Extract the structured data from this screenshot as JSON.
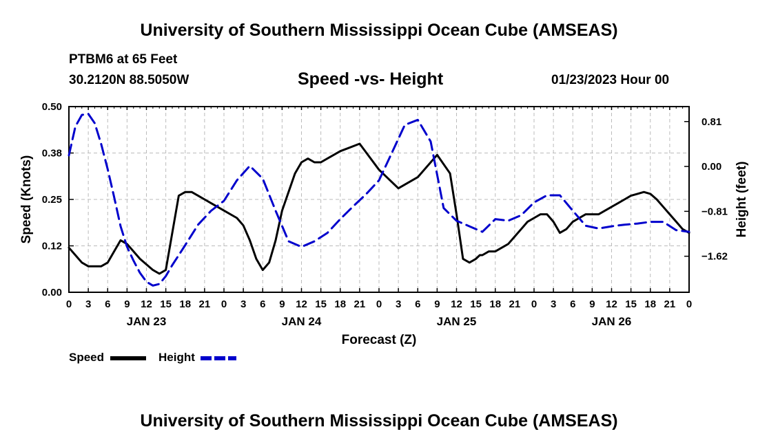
{
  "header": {
    "title": "University of Southern Mississippi Ocean Cube (AMSEAS)",
    "station": "PTBM6 at 65 Feet",
    "coordinates": "30.2120N  88.5050W",
    "chart_title": "Speed -vs- Height",
    "run_time": "01/23/2023 Hour 00"
  },
  "footer": {
    "title": "University of Southern Mississippi Ocean Cube (AMSEAS)"
  },
  "colors": {
    "speed": "#000000",
    "height": "#0000cc",
    "grid": "#bbbbbb"
  },
  "chart_data": {
    "type": "line",
    "title": "Speed -vs- Height",
    "xlabel": "Forecast (Z)",
    "ylabel": "Speed (Knots)",
    "y2label": "Height (feet)",
    "x_unit": "forecast hour",
    "xlim": [
      0,
      96
    ],
    "ylim": [
      0,
      0.5
    ],
    "y2lim": [
      -2.27,
      1.08
    ],
    "y_ticks": [
      "0.00",
      "0.12",
      "0.25",
      "0.38",
      "0.50"
    ],
    "y_tick_values": [
      0,
      0.125,
      0.25,
      0.375,
      0.5
    ],
    "y2_ticks": [
      "0.81",
      "0.00",
      "−0.81",
      "−1.62"
    ],
    "y2_tick_values": [
      0.81,
      0,
      -0.81,
      -1.62
    ],
    "x_tick_labels": [
      "0",
      "3",
      "6",
      "9",
      "12",
      "15",
      "18",
      "21",
      "0",
      "3",
      "6",
      "9",
      "12",
      "15",
      "18",
      "21",
      "0",
      "3",
      "6",
      "9",
      "12",
      "15",
      "18",
      "21",
      "0",
      "3",
      "6",
      "9",
      "12",
      "15",
      "18",
      "21",
      "0"
    ],
    "day_labels": [
      {
        "label": "JAN 23",
        "hour": 12
      },
      {
        "label": "JAN 24",
        "hour": 36
      },
      {
        "label": "JAN 25",
        "hour": 60
      },
      {
        "label": "JAN 26",
        "hour": 84
      }
    ],
    "legend": [
      {
        "name": "Speed",
        "style": "solid"
      },
      {
        "name": "Height",
        "style": "dashed"
      }
    ],
    "series": [
      {
        "name": "Speed",
        "axis": "left",
        "style": "solid",
        "x": [
          0,
          1,
          2,
          3,
          4,
          5,
          6,
          7,
          8,
          9,
          10,
          11,
          12,
          13,
          14,
          15,
          16,
          17,
          18,
          19,
          20,
          21,
          22,
          24,
          26,
          27,
          28,
          29,
          30,
          31,
          32,
          33,
          35,
          36,
          37,
          38,
          39,
          40,
          42,
          45,
          48,
          51,
          54,
          57,
          59,
          60,
          61,
          62,
          63,
          63.6,
          64,
          65,
          66,
          67,
          68,
          69,
          70,
          71,
          72,
          73,
          74,
          75,
          76,
          77,
          78,
          79,
          80,
          81,
          82,
          83,
          84,
          85,
          86,
          87,
          88,
          89,
          90,
          91,
          92,
          93,
          94,
          95,
          96
        ],
        "values": [
          0.12,
          0.1,
          0.08,
          0.07,
          0.07,
          0.07,
          0.08,
          0.11,
          0.14,
          0.13,
          0.11,
          0.09,
          0.075,
          0.06,
          0.05,
          0.06,
          0.16,
          0.26,
          0.27,
          0.27,
          0.26,
          0.25,
          0.24,
          0.22,
          0.2,
          0.18,
          0.14,
          0.09,
          0.06,
          0.08,
          0.14,
          0.22,
          0.32,
          0.35,
          0.36,
          0.35,
          0.35,
          0.36,
          0.38,
          0.4,
          0.33,
          0.28,
          0.31,
          0.37,
          0.32,
          0.21,
          0.09,
          0.08,
          0.09,
          0.1,
          0.1,
          0.11,
          0.11,
          0.12,
          0.13,
          0.15,
          0.17,
          0.19,
          0.2,
          0.21,
          0.21,
          0.19,
          0.16,
          0.17,
          0.19,
          0.2,
          0.21,
          0.21,
          0.21,
          0.22,
          0.23,
          0.24,
          0.25,
          0.26,
          0.265,
          0.27,
          0.265,
          0.25,
          0.23,
          0.21,
          0.19,
          0.17,
          0.16
        ]
      },
      {
        "name": "Height",
        "axis": "right",
        "style": "dashed",
        "x": [
          0,
          1,
          2,
          3,
          4,
          5,
          6,
          7,
          8,
          9,
          10,
          11,
          12,
          13,
          14,
          15,
          16,
          18,
          20,
          22,
          24,
          26,
          28,
          30,
          32,
          34,
          36,
          38,
          40,
          42,
          44,
          46,
          48,
          50,
          52,
          54,
          56,
          58,
          60,
          62,
          64,
          66,
          68,
          70,
          72,
          74,
          76,
          78,
          80,
          82,
          84,
          86,
          88,
          90,
          92,
          94,
          96
        ],
        "values": [
          0.2,
          0.72,
          0.93,
          0.95,
          0.78,
          0.4,
          -0.05,
          -0.55,
          -1.08,
          -1.45,
          -1.7,
          -1.92,
          -2.08,
          -2.15,
          -2.12,
          -1.98,
          -1.78,
          -1.42,
          -1.05,
          -0.8,
          -0.62,
          -0.25,
          0.01,
          -0.22,
          -0.8,
          -1.35,
          -1.45,
          -1.35,
          -1.2,
          -0.95,
          -0.72,
          -0.5,
          -0.25,
          0.25,
          0.75,
          0.84,
          0.45,
          -0.75,
          -0.98,
          -1.08,
          -1.18,
          -0.95,
          -0.98,
          -0.88,
          -0.65,
          -0.52,
          -0.52,
          -0.8,
          -1.07,
          -1.12,
          -1.08,
          -1.05,
          -1.03,
          -1.0,
          -1.0,
          -1.15,
          -1.18
        ]
      }
    ]
  }
}
